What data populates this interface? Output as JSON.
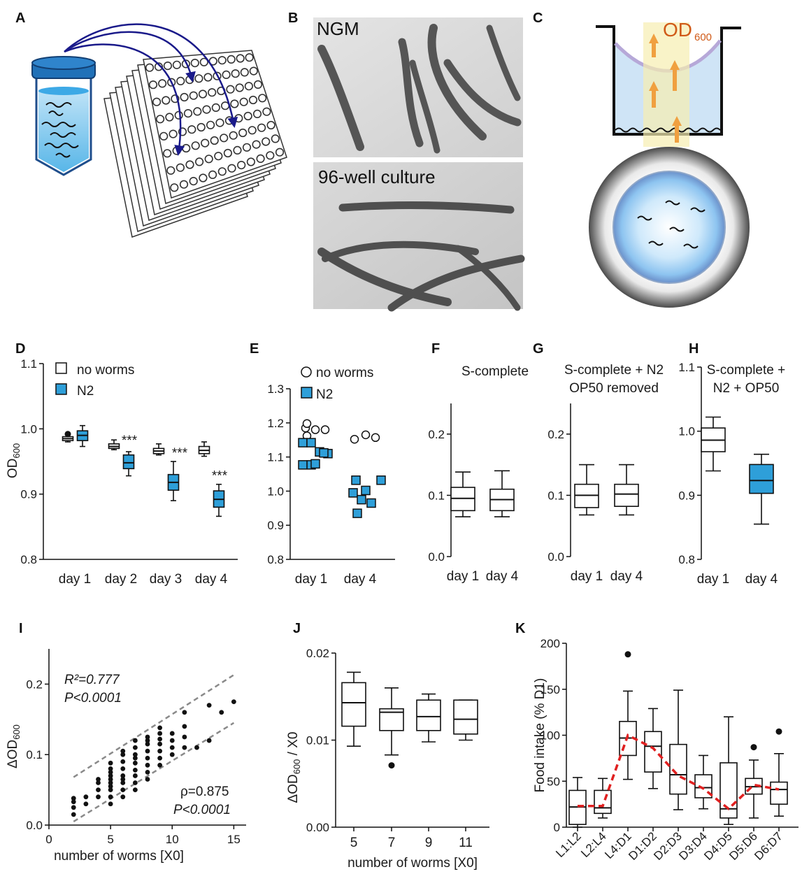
{
  "panel_labels": {
    "A": "A",
    "B": "B",
    "C": "C",
    "D": "D",
    "E": "E",
    "F": "F",
    "G": "G",
    "H": "H",
    "I": "I",
    "J": "J",
    "K": "K"
  },
  "panel_b": {
    "top_label": "NGM",
    "bottom_label": "96-well culture"
  },
  "panel_c": {
    "od_main": "OD",
    "od_sub": "600"
  },
  "colors": {
    "n2_fill": "#2e9fd9",
    "median_line": "#111111",
    "trend_red": "#e02020",
    "dashed_gray": "#8a8a8a",
    "arrow_orange": "#f0a040"
  },
  "chart_data": [
    {
      "panel": "D",
      "type": "box",
      "ylabel_main": "OD",
      "ylabel_sub": "600",
      "ylim": [
        0.8,
        1.1
      ],
      "yticks": [
        "0.8",
        "0.9",
        "1.0",
        "1.1"
      ],
      "categories": [
        "day 1",
        "day 2",
        "day 3",
        "day 4"
      ],
      "legend": [
        {
          "name": "no worms",
          "color": "#ffffff"
        },
        {
          "name": "N2",
          "color": "#2e9fd9"
        }
      ],
      "series": [
        {
          "name": "no worms",
          "boxes": [
            {
              "min": 0.98,
              "q1": 0.982,
              "med": 0.985,
              "q3": 0.988,
              "max": 0.991,
              "outliers": [
                0.992
              ]
            },
            {
              "min": 0.968,
              "q1": 0.97,
              "med": 0.973,
              "q3": 0.977,
              "max": 0.983,
              "outliers": []
            },
            {
              "min": 0.96,
              "q1": 0.962,
              "med": 0.966,
              "q3": 0.97,
              "max": 0.977,
              "outliers": []
            },
            {
              "min": 0.958,
              "q1": 0.962,
              "med": 0.967,
              "q3": 0.973,
              "max": 0.98,
              "outliers": []
            }
          ]
        },
        {
          "name": "N2",
          "boxes": [
            {
              "min": 0.973,
              "q1": 0.982,
              "med": 0.99,
              "q3": 0.997,
              "max": 1.005,
              "outliers": []
            },
            {
              "min": 0.928,
              "q1": 0.939,
              "med": 0.948,
              "q3": 0.96,
              "max": 0.965,
              "outliers": []
            },
            {
              "min": 0.89,
              "q1": 0.906,
              "med": 0.918,
              "q3": 0.93,
              "max": 0.95,
              "outliers": []
            },
            {
              "min": 0.866,
              "q1": 0.88,
              "med": 0.892,
              "q3": 0.905,
              "max": 0.915,
              "outliers": []
            }
          ]
        }
      ],
      "annotations": [
        null,
        "***",
        "***",
        "***"
      ]
    },
    {
      "panel": "E",
      "type": "scatter",
      "ylim": [
        0.8,
        1.3
      ],
      "yticks": [
        "0.8",
        "0.9",
        "1.0",
        "1.1",
        "1.2",
        "1.3"
      ],
      "categories": [
        "day 1",
        "day 4"
      ],
      "legend": [
        {
          "name": "no worms",
          "marker": "circle"
        },
        {
          "name": "N2",
          "marker": "square",
          "color": "#2e9fd9"
        }
      ],
      "series": [
        {
          "name": "no worms",
          "points": [
            [
              1,
              1.185
            ],
            [
              1,
              1.162
            ],
            [
              1,
              1.18
            ],
            [
              1,
              1.18
            ],
            [
              1,
              1.198
            ],
            [
              2,
              1.152
            ],
            [
              2,
              1.165
            ],
            [
              2,
              1.157
            ]
          ]
        },
        {
          "name": "N2",
          "points": [
            [
              1,
              1.142
            ],
            [
              1,
              1.142
            ],
            [
              1,
              1.115
            ],
            [
              1,
              1.11
            ],
            [
              1,
              1.077
            ],
            [
              1,
              1.077
            ],
            [
              1,
              1.08
            ],
            [
              1,
              1.112
            ],
            [
              2,
              1.032
            ],
            [
              2,
              1.032
            ],
            [
              2,
              1.002
            ],
            [
              2,
              0.995
            ],
            [
              2,
              0.975
            ],
            [
              2,
              0.965
            ],
            [
              2,
              0.935
            ]
          ]
        }
      ]
    },
    {
      "panel": "F",
      "type": "box",
      "title": "S-complete",
      "ylim": [
        0.0,
        0.25
      ],
      "yticks": [
        "0.0",
        "0.1",
        "0.2"
      ],
      "categories": [
        "day 1",
        "day 4"
      ],
      "series": [
        {
          "name": "",
          "boxes": [
            {
              "min": 0.065,
              "q1": 0.075,
              "med": 0.095,
              "q3": 0.113,
              "max": 0.138,
              "outliers": []
            },
            {
              "min": 0.065,
              "q1": 0.075,
              "med": 0.093,
              "q3": 0.11,
              "max": 0.14,
              "outliers": []
            }
          ]
        }
      ]
    },
    {
      "panel": "G",
      "type": "box",
      "title": [
        "S-complete + N2",
        "OP50 removed"
      ],
      "ylim": [
        0.0,
        0.25
      ],
      "yticks": [
        "0.0",
        "0.1",
        "0.2"
      ],
      "categories": [
        "day 1",
        "day 4"
      ],
      "series": [
        {
          "name": "",
          "boxes": [
            {
              "min": 0.068,
              "q1": 0.08,
              "med": 0.1,
              "q3": 0.118,
              "max": 0.15,
              "outliers": []
            },
            {
              "min": 0.068,
              "q1": 0.082,
              "med": 0.102,
              "q3": 0.118,
              "max": 0.15,
              "outliers": []
            }
          ]
        }
      ]
    },
    {
      "panel": "H",
      "type": "box",
      "title": [
        "S-complete +",
        "N2 + OP50"
      ],
      "ylim": [
        0.8,
        1.1
      ],
      "yticks": [
        "0.8",
        "0.9",
        "1.0",
        "1.1"
      ],
      "categories": [
        "day 1",
        "day 4"
      ],
      "series": [
        {
          "name": "",
          "boxes": [
            {
              "min": 0.938,
              "q1": 0.968,
              "med": 0.986,
              "q3": 1.005,
              "max": 1.022,
              "outliers": [],
              "fill": "white"
            },
            {
              "min": 0.855,
              "q1": 0.903,
              "med": 0.923,
              "q3": 0.948,
              "max": 0.964,
              "outliers": [],
              "fill": "blue"
            }
          ]
        }
      ]
    },
    {
      "panel": "I",
      "type": "scatter",
      "ylabel_main": "ΔOD",
      "ylabel_sub": "600",
      "xlabel": "number of worms [X0]",
      "xlim": [
        0,
        16
      ],
      "ylim": [
        0,
        0.25
      ],
      "xticks": [
        "0",
        "5",
        "10",
        "15"
      ],
      "yticks": [
        "0.0",
        "0.1",
        "0.2"
      ],
      "stats_top": {
        "r2": "R²=0.777",
        "p": "P<0.0001"
      },
      "stats_bottom": {
        "rho": "ρ=0.875",
        "p": "P<0.0001"
      },
      "band_upper": [
        [
          2,
          0.068
        ],
        [
          15,
          0.213
        ]
      ],
      "band_lower": [
        [
          2,
          0.005
        ],
        [
          15,
          0.145
        ]
      ],
      "points": [
        [
          2,
          0.015
        ],
        [
          2,
          0.025
        ],
        [
          2,
          0.033
        ],
        [
          2,
          0.038
        ],
        [
          3,
          0.03
        ],
        [
          3,
          0.04
        ],
        [
          4,
          0.04
        ],
        [
          4,
          0.05
        ],
        [
          4,
          0.06
        ],
        [
          4,
          0.065
        ],
        [
          5,
          0.03
        ],
        [
          5,
          0.04
        ],
        [
          5,
          0.05
        ],
        [
          5,
          0.055
        ],
        [
          5,
          0.06
        ],
        [
          5,
          0.065
        ],
        [
          5,
          0.07
        ],
        [
          5,
          0.075
        ],
        [
          5,
          0.08
        ],
        [
          5,
          0.088
        ],
        [
          6,
          0.04
        ],
        [
          6,
          0.05
        ],
        [
          6,
          0.06
        ],
        [
          6,
          0.065
        ],
        [
          6,
          0.07
        ],
        [
          6,
          0.08
        ],
        [
          6,
          0.09
        ],
        [
          6,
          0.1
        ],
        [
          6,
          0.105
        ],
        [
          7,
          0.05
        ],
        [
          7,
          0.06
        ],
        [
          7,
          0.07
        ],
        [
          7,
          0.078
        ],
        [
          7,
          0.088
        ],
        [
          7,
          0.095
        ],
        [
          7,
          0.1
        ],
        [
          7,
          0.11
        ],
        [
          7,
          0.12
        ],
        [
          8,
          0.065
        ],
        [
          8,
          0.075
        ],
        [
          8,
          0.085
        ],
        [
          8,
          0.095
        ],
        [
          8,
          0.105
        ],
        [
          8,
          0.115
        ],
        [
          8,
          0.12
        ],
        [
          8,
          0.125
        ],
        [
          9,
          0.085
        ],
        [
          9,
          0.095
        ],
        [
          9,
          0.105
        ],
        [
          9,
          0.115
        ],
        [
          9,
          0.122
        ],
        [
          9,
          0.13
        ],
        [
          9,
          0.138
        ],
        [
          10,
          0.1
        ],
        [
          10,
          0.11
        ],
        [
          10,
          0.12
        ],
        [
          10,
          0.13
        ],
        [
          11,
          0.11
        ],
        [
          11,
          0.125
        ],
        [
          11,
          0.14
        ],
        [
          11,
          0.16
        ],
        [
          12,
          0.11
        ],
        [
          13,
          0.12
        ],
        [
          13,
          0.17
        ],
        [
          14,
          0.16
        ],
        [
          15,
          0.175
        ]
      ]
    },
    {
      "panel": "J",
      "type": "box",
      "ylabel_main": "ΔOD",
      "ylabel_sub": "600",
      "ylabel_tail": " / X0",
      "xlabel": "number of worms [X0]",
      "ylim": [
        0.0,
        0.02
      ],
      "yticks": [
        "0.00",
        "0.01",
        "0.02"
      ],
      "categories": [
        "5",
        "7",
        "9",
        "11"
      ],
      "series": [
        {
          "name": "",
          "boxes": [
            {
              "min": 0.0093,
              "q1": 0.0116,
              "med": 0.0143,
              "q3": 0.0166,
              "max": 0.0178,
              "outliers": []
            },
            {
              "min": 0.0083,
              "q1": 0.0111,
              "med": 0.0132,
              "q3": 0.0136,
              "max": 0.016,
              "outliers": [
                0.0071
              ]
            },
            {
              "min": 0.0098,
              "q1": 0.0111,
              "med": 0.0127,
              "q3": 0.0146,
              "max": 0.0153,
              "outliers": []
            },
            {
              "min": 0.01,
              "q1": 0.0107,
              "med": 0.0124,
              "q3": 0.0146,
              "max": 0.0146,
              "outliers": []
            }
          ]
        }
      ]
    },
    {
      "panel": "K",
      "type": "box",
      "ylabel": "Food intake (% D1)",
      "ylim": [
        0,
        200
      ],
      "yticks": [
        "0",
        "50",
        "100",
        "150",
        "200"
      ],
      "categories": [
        "L1:L2",
        "L2:L4",
        "L4:D1",
        "D1:D2",
        "D2:D3",
        "D3:D4",
        "D4:D5",
        "D5:D6",
        "D6:D7"
      ],
      "series": [
        {
          "name": "",
          "boxes": [
            {
              "min": 0,
              "q1": 3,
              "med": 22,
              "q3": 40,
              "max": 54,
              "outliers": []
            },
            {
              "min": 10,
              "q1": 15,
              "med": 21,
              "q3": 40,
              "max": 53,
              "outliers": []
            },
            {
              "min": 52,
              "q1": 78,
              "med": 97,
              "q3": 115,
              "max": 148,
              "outliers": [
                188
              ]
            },
            {
              "min": 42,
              "q1": 60,
              "med": 88,
              "q3": 104,
              "max": 129,
              "outliers": []
            },
            {
              "min": 19,
              "q1": 36,
              "med": 57,
              "q3": 90,
              "max": 149,
              "outliers": []
            },
            {
              "min": 20,
              "q1": 32,
              "med": 43,
              "q3": 57,
              "max": 78,
              "outliers": []
            },
            {
              "min": 3,
              "q1": 10,
              "med": 20,
              "q3": 70,
              "max": 120,
              "outliers": []
            },
            {
              "min": 10,
              "q1": 36,
              "med": 44,
              "q3": 53,
              "max": 73,
              "outliers": [
                87
              ]
            },
            {
              "min": 12,
              "q1": 25,
              "med": 41,
              "q3": 49,
              "max": 80,
              "outliers": [
                104
              ]
            }
          ]
        }
      ],
      "trend": [
        23,
        23,
        100,
        86,
        56,
        42,
        20,
        46,
        41
      ]
    }
  ]
}
